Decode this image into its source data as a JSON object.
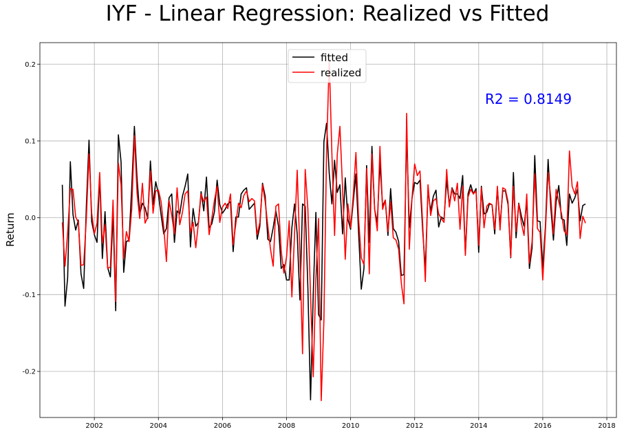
{
  "chart_data": {
    "type": "line",
    "title": "IYF - Linear Regression: Realized vs Fitted",
    "xlabel": "",
    "ylabel": "Return",
    "xlim": [
      2000.3,
      2018.3
    ],
    "ylim": [
      -0.26,
      0.228
    ],
    "x_ticks": [
      2002,
      2004,
      2006,
      2008,
      2010,
      2012,
      2014,
      2016,
      2018
    ],
    "y_ticks": [
      -0.2,
      -0.1,
      0.0,
      0.1,
      0.2
    ],
    "x_tick_labels": [
      "2002",
      "2004",
      "2006",
      "2008",
      "2010",
      "2012",
      "2014",
      "2016",
      "2018"
    ],
    "y_tick_labels": [
      "-0.2",
      "-0.1",
      "0.0",
      "0.1",
      "0.2"
    ],
    "grid": true,
    "legend_position": "top-center",
    "annotation": "R2 = 0.8149",
    "annotation_color": "#0000ff",
    "x_start": 2001.0,
    "x_step": 0.0833333,
    "series": [
      {
        "name": "fitted",
        "color": "#000000",
        "values": [
          0.043,
          -0.115,
          -0.078,
          0.073,
          0.004,
          -0.016,
          -0.003,
          -0.073,
          -0.092,
          0.015,
          0.101,
          -0.005,
          -0.022,
          -0.032,
          0.054,
          -0.053,
          0.008,
          -0.065,
          -0.077,
          0.005,
          -0.121,
          0.108,
          0.073,
          -0.071,
          -0.031,
          -0.029,
          0.039,
          0.119,
          0.051,
          0.005,
          0.019,
          0.013,
          -0.001,
          0.074,
          0.017,
          0.047,
          0.031,
          0.004,
          -0.021,
          -0.014,
          0.026,
          0.031,
          -0.032,
          0.009,
          0.005,
          0.028,
          0.041,
          0.057,
          -0.038,
          0.012,
          -0.011,
          -0.006,
          0.034,
          0.009,
          0.053,
          -0.013,
          -0.008,
          0.008,
          0.049,
          0.017,
          0.006,
          0.011,
          0.018,
          0.021,
          -0.044,
          0.001,
          0.001,
          0.031,
          0.036,
          0.039,
          0.011,
          0.015,
          0.019,
          -0.028,
          -0.011,
          0.045,
          0.028,
          -0.028,
          -0.031,
          -0.013,
          0.009,
          -0.011,
          -0.066,
          -0.061,
          -0.081,
          -0.081,
          -0.013,
          0.018,
          -0.021,
          -0.107,
          0.018,
          0.015,
          -0.091,
          -0.237,
          -0.101,
          0.007,
          -0.126,
          -0.133,
          0.099,
          0.123,
          0.058,
          0.018,
          0.075,
          0.033,
          0.043,
          -0.021,
          0.052,
          -0.002,
          -0.015,
          0.021,
          0.057,
          -0.019,
          -0.093,
          -0.066,
          0.068,
          -0.032,
          0.093,
          0.011,
          -0.006,
          0.072,
          0.015,
          0.023,
          -0.023,
          0.038,
          -0.014,
          -0.019,
          -0.031,
          -0.075,
          -0.074,
          0.111,
          -0.013,
          0.025,
          0.046,
          0.044,
          0.049,
          -0.016,
          -0.067,
          0.036,
          0.009,
          0.028,
          0.036,
          -0.012,
          0.001,
          -0.002,
          0.049,
          0.017,
          0.039,
          0.031,
          0.031,
          0.025,
          0.055,
          -0.047,
          0.031,
          0.043,
          0.031,
          0.038,
          -0.045,
          0.041,
          0.005,
          0.007,
          0.018,
          0.017,
          -0.021,
          0.039,
          -0.011,
          0.035,
          0.035,
          0.017,
          -0.052,
          0.059,
          -0.026,
          0.019,
          0.002,
          -0.011,
          0.021,
          -0.066,
          -0.039,
          0.081,
          -0.004,
          -0.005,
          -0.066,
          -0.011,
          0.076,
          0.014,
          -0.029,
          0.021,
          0.042,
          -0.001,
          -0.003,
          -0.036,
          0.031,
          0.019,
          0.026,
          0.037,
          -0.004,
          0.016,
          0.018
        ]
      },
      {
        "name": "realized",
        "color": "#ff0000",
        "values": [
          -0.006,
          -0.063,
          -0.019,
          0.038,
          0.037,
          0.001,
          -0.006,
          -0.062,
          -0.061,
          -0.001,
          0.083,
          0.006,
          -0.021,
          -0.007,
          0.059,
          -0.033,
          -0.009,
          -0.066,
          -0.064,
          0.023,
          -0.109,
          0.071,
          0.043,
          -0.053,
          -0.018,
          -0.031,
          0.011,
          0.107,
          0.032,
          -0.001,
          0.045,
          -0.007,
          0.001,
          0.061,
          0.006,
          0.035,
          0.036,
          0.021,
          -0.012,
          -0.057,
          0.022,
          0.003,
          -0.021,
          0.039,
          -0.009,
          0.007,
          0.031,
          0.035,
          -0.019,
          -0.006,
          -0.039,
          -0.006,
          0.031,
          0.021,
          0.027,
          -0.022,
          -0.001,
          0.023,
          0.041,
          -0.006,
          0.014,
          0.019,
          0.012,
          0.031,
          -0.035,
          -0.008,
          0.019,
          0.013,
          0.029,
          0.035,
          0.021,
          0.025,
          0.022,
          -0.022,
          -0.006,
          0.043,
          0.021,
          -0.011,
          -0.041,
          -0.063,
          0.015,
          0.018,
          -0.043,
          -0.072,
          -0.051,
          -0.004,
          -0.103,
          -0.021,
          0.062,
          -0.045,
          -0.177,
          0.063,
          0.011,
          -0.101,
          -0.207,
          -0.079,
          -0.001,
          -0.238,
          -0.134,
          0.086,
          0.206,
          0.083,
          -0.023,
          0.082,
          0.119,
          0.038,
          -0.054,
          0.018,
          -0.013,
          0.029,
          0.085,
          -0.001,
          -0.052,
          -0.061,
          0.064,
          -0.073,
          0.083,
          0.012,
          -0.017,
          0.093,
          0.011,
          0.023,
          -0.018,
          0.021,
          -0.026,
          -0.029,
          -0.041,
          -0.085,
          -0.112,
          0.136,
          -0.041,
          0.025,
          0.07,
          0.055,
          0.061,
          -0.007,
          -0.083,
          0.043,
          0.003,
          0.022,
          0.025,
          0.005,
          -0.001,
          -0.006,
          0.063,
          0.014,
          0.038,
          0.022,
          0.045,
          -0.015,
          0.041,
          -0.049,
          0.027,
          0.037,
          0.031,
          0.035,
          -0.036,
          0.039,
          -0.013,
          0.015,
          0.019,
          0.017,
          -0.015,
          0.041,
          -0.016,
          0.039,
          0.037,
          0.021,
          -0.051,
          0.041,
          -0.018,
          0.018,
          -0.007,
          -0.023,
          0.031,
          -0.059,
          -0.031,
          0.057,
          -0.014,
          -0.019,
          -0.081,
          -0.017,
          0.059,
          0.027,
          -0.021,
          0.037,
          0.021,
          0.006,
          -0.017,
          -0.022,
          0.087,
          0.041,
          0.031,
          0.047,
          -0.027,
          0.002,
          -0.007
        ]
      }
    ]
  }
}
